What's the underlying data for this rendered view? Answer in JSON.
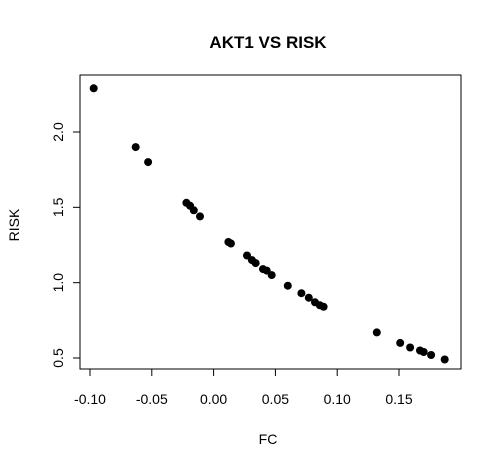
{
  "chart_data": {
    "type": "scatter",
    "title": "AKT1 VS RISK",
    "xlabel": "FC",
    "ylabel": "RISK",
    "xlim": [
      -0.1,
      0.19
    ],
    "ylim": [
      0.45,
      2.35
    ],
    "x_ticks": [
      -0.1,
      -0.05,
      0.0,
      0.05,
      0.1,
      0.15
    ],
    "x_tick_labels": [
      "-0.10",
      "-0.05",
      "0.00",
      "0.05",
      "0.10",
      "0.15"
    ],
    "y_ticks": [
      0.5,
      1.0,
      1.5,
      2.0
    ],
    "y_tick_labels": [
      "0.5",
      "1.0",
      "1.5",
      "2.0"
    ],
    "grid": false,
    "marker_color": "#000000",
    "points": [
      {
        "x": -0.097,
        "y": 2.29
      },
      {
        "x": -0.063,
        "y": 1.9
      },
      {
        "x": -0.053,
        "y": 1.8
      },
      {
        "x": -0.022,
        "y": 1.53
      },
      {
        "x": -0.019,
        "y": 1.51
      },
      {
        "x": -0.016,
        "y": 1.48
      },
      {
        "x": -0.011,
        "y": 1.44
      },
      {
        "x": 0.012,
        "y": 1.27
      },
      {
        "x": 0.014,
        "y": 1.26
      },
      {
        "x": 0.027,
        "y": 1.18
      },
      {
        "x": 0.031,
        "y": 1.15
      },
      {
        "x": 0.034,
        "y": 1.13
      },
      {
        "x": 0.04,
        "y": 1.09
      },
      {
        "x": 0.043,
        "y": 1.08
      },
      {
        "x": 0.047,
        "y": 1.05
      },
      {
        "x": 0.06,
        "y": 0.98
      },
      {
        "x": 0.071,
        "y": 0.93
      },
      {
        "x": 0.077,
        "y": 0.9
      },
      {
        "x": 0.082,
        "y": 0.87
      },
      {
        "x": 0.086,
        "y": 0.85
      },
      {
        "x": 0.089,
        "y": 0.84
      },
      {
        "x": 0.132,
        "y": 0.67
      },
      {
        "x": 0.151,
        "y": 0.6
      },
      {
        "x": 0.159,
        "y": 0.57
      },
      {
        "x": 0.167,
        "y": 0.55
      },
      {
        "x": 0.17,
        "y": 0.54
      },
      {
        "x": 0.176,
        "y": 0.52
      },
      {
        "x": 0.187,
        "y": 0.49
      }
    ]
  }
}
